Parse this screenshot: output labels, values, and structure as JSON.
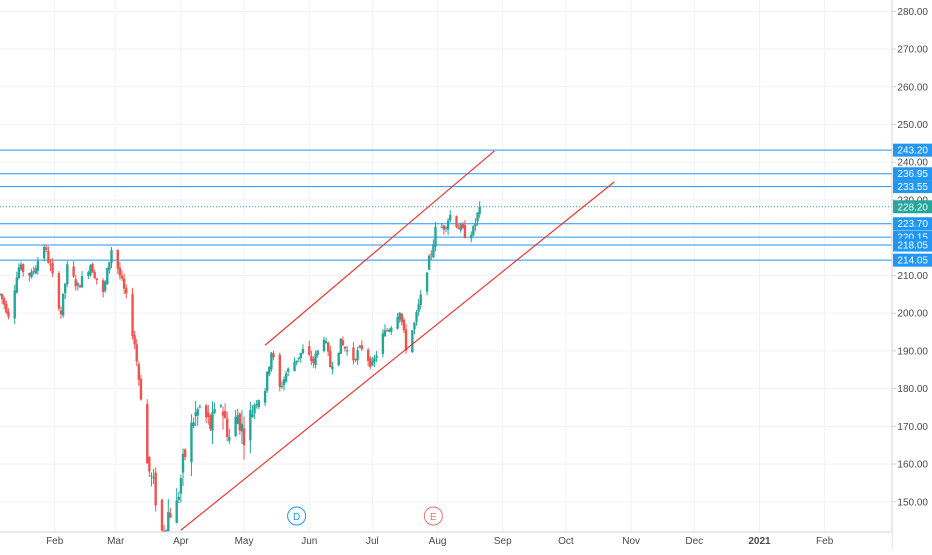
{
  "chart_data": {
    "type": "candlestick",
    "price_axis": {
      "ticks": [
        "280.00",
        "270.00",
        "260.00",
        "250.00",
        "240.00",
        "230.00",
        "210.00",
        "200.00",
        "190.00",
        "180.00",
        "170.00",
        "160.00",
        "150.00"
      ],
      "tick_values": [
        280,
        270,
        260,
        250,
        240,
        230,
        210,
        200,
        190,
        180,
        170,
        160,
        150
      ],
      "range": [
        142,
        283
      ]
    },
    "time_axis": {
      "labels": [
        "Feb",
        "Mar",
        "Apr",
        "May",
        "Jun",
        "Jul",
        "Aug",
        "Sep",
        "Oct",
        "Nov",
        "Dec",
        "2021",
        "Feb"
      ],
      "range": [
        "2020-01-06",
        "2021-03-05"
      ]
    },
    "horizontal_levels": [
      {
        "label": "243.20",
        "value": 243.2
      },
      {
        "label": "236.95",
        "value": 236.95
      },
      {
        "label": "233.55",
        "value": 233.55
      },
      {
        "label": "223.70",
        "value": 223.7
      },
      {
        "label": "220.15",
        "value": 220.15
      },
      {
        "label": "218.05",
        "value": 218.05
      },
      {
        "label": "214.05",
        "value": 214.05
      }
    ],
    "last_price": {
      "label": "228.20",
      "value": 228.2
    },
    "channel_lines": [
      {
        "start": [
          "2020-05-11",
          191.5
        ],
        "end": [
          "2020-08-28",
          243.0
        ]
      },
      {
        "start": [
          "2020-04-01",
          142.5
        ],
        "end": [
          "2020-10-24",
          234.8
        ]
      }
    ],
    "event_markers": [
      {
        "letter": "D",
        "date": "2020-05-26"
      },
      {
        "letter": "E",
        "date": "2020-07-30"
      }
    ],
    "price_path": [
      [
        "2020-01-06",
        205
      ],
      [
        "2020-01-10",
        200
      ],
      [
        "2020-01-15",
        212
      ],
      [
        "2020-01-21",
        210
      ],
      [
        "2020-01-27",
        218
      ],
      [
        "2020-01-30",
        212
      ],
      [
        "2020-02-04",
        200
      ],
      [
        "2020-02-07",
        212
      ],
      [
        "2020-02-12",
        207
      ],
      [
        "2020-02-18",
        213
      ],
      [
        "2020-02-24",
        205
      ],
      [
        "2020-02-28",
        217
      ],
      [
        "2020-03-02",
        212
      ],
      [
        "2020-03-06",
        204
      ],
      [
        "2020-03-10",
        192
      ],
      [
        "2020-03-13",
        178
      ],
      [
        "2020-03-16",
        160
      ],
      [
        "2020-03-19",
        154
      ],
      [
        "2020-03-23",
        142
      ],
      [
        "2020-03-26",
        147
      ],
      [
        "2020-03-30",
        149
      ],
      [
        "2020-04-02",
        160
      ],
      [
        "2020-04-07",
        172
      ],
      [
        "2020-04-10",
        175
      ],
      [
        "2020-04-15",
        170
      ],
      [
        "2020-04-20",
        176
      ],
      [
        "2020-04-24",
        167
      ],
      [
        "2020-04-28",
        173
      ],
      [
        "2020-05-01",
        168
      ],
      [
        "2020-05-06",
        176
      ],
      [
        "2020-05-11",
        180
      ],
      [
        "2020-05-14",
        190
      ],
      [
        "2020-05-18",
        180
      ],
      [
        "2020-05-21",
        184
      ],
      [
        "2020-05-26",
        188
      ],
      [
        "2020-05-29",
        190
      ],
      [
        "2020-06-03",
        187
      ],
      [
        "2020-06-08",
        194
      ],
      [
        "2020-06-11",
        186
      ],
      [
        "2020-06-16",
        192
      ],
      [
        "2020-06-22",
        188
      ],
      [
        "2020-06-26",
        191
      ],
      [
        "2020-07-01",
        186
      ],
      [
        "2020-07-06",
        194
      ],
      [
        "2020-07-10",
        197
      ],
      [
        "2020-07-14",
        201
      ],
      [
        "2020-07-17",
        191
      ],
      [
        "2020-07-21",
        197
      ],
      [
        "2020-07-24",
        204
      ],
      [
        "2020-07-27",
        212
      ],
      [
        "2020-07-29",
        216
      ],
      [
        "2020-07-31",
        222
      ],
      [
        "2020-08-04",
        223
      ],
      [
        "2020-08-07",
        226
      ],
      [
        "2020-08-11",
        223
      ],
      [
        "2020-08-14",
        221
      ],
      [
        "2020-08-18",
        222
      ],
      [
        "2020-08-21",
        228.2
      ]
    ]
  }
}
